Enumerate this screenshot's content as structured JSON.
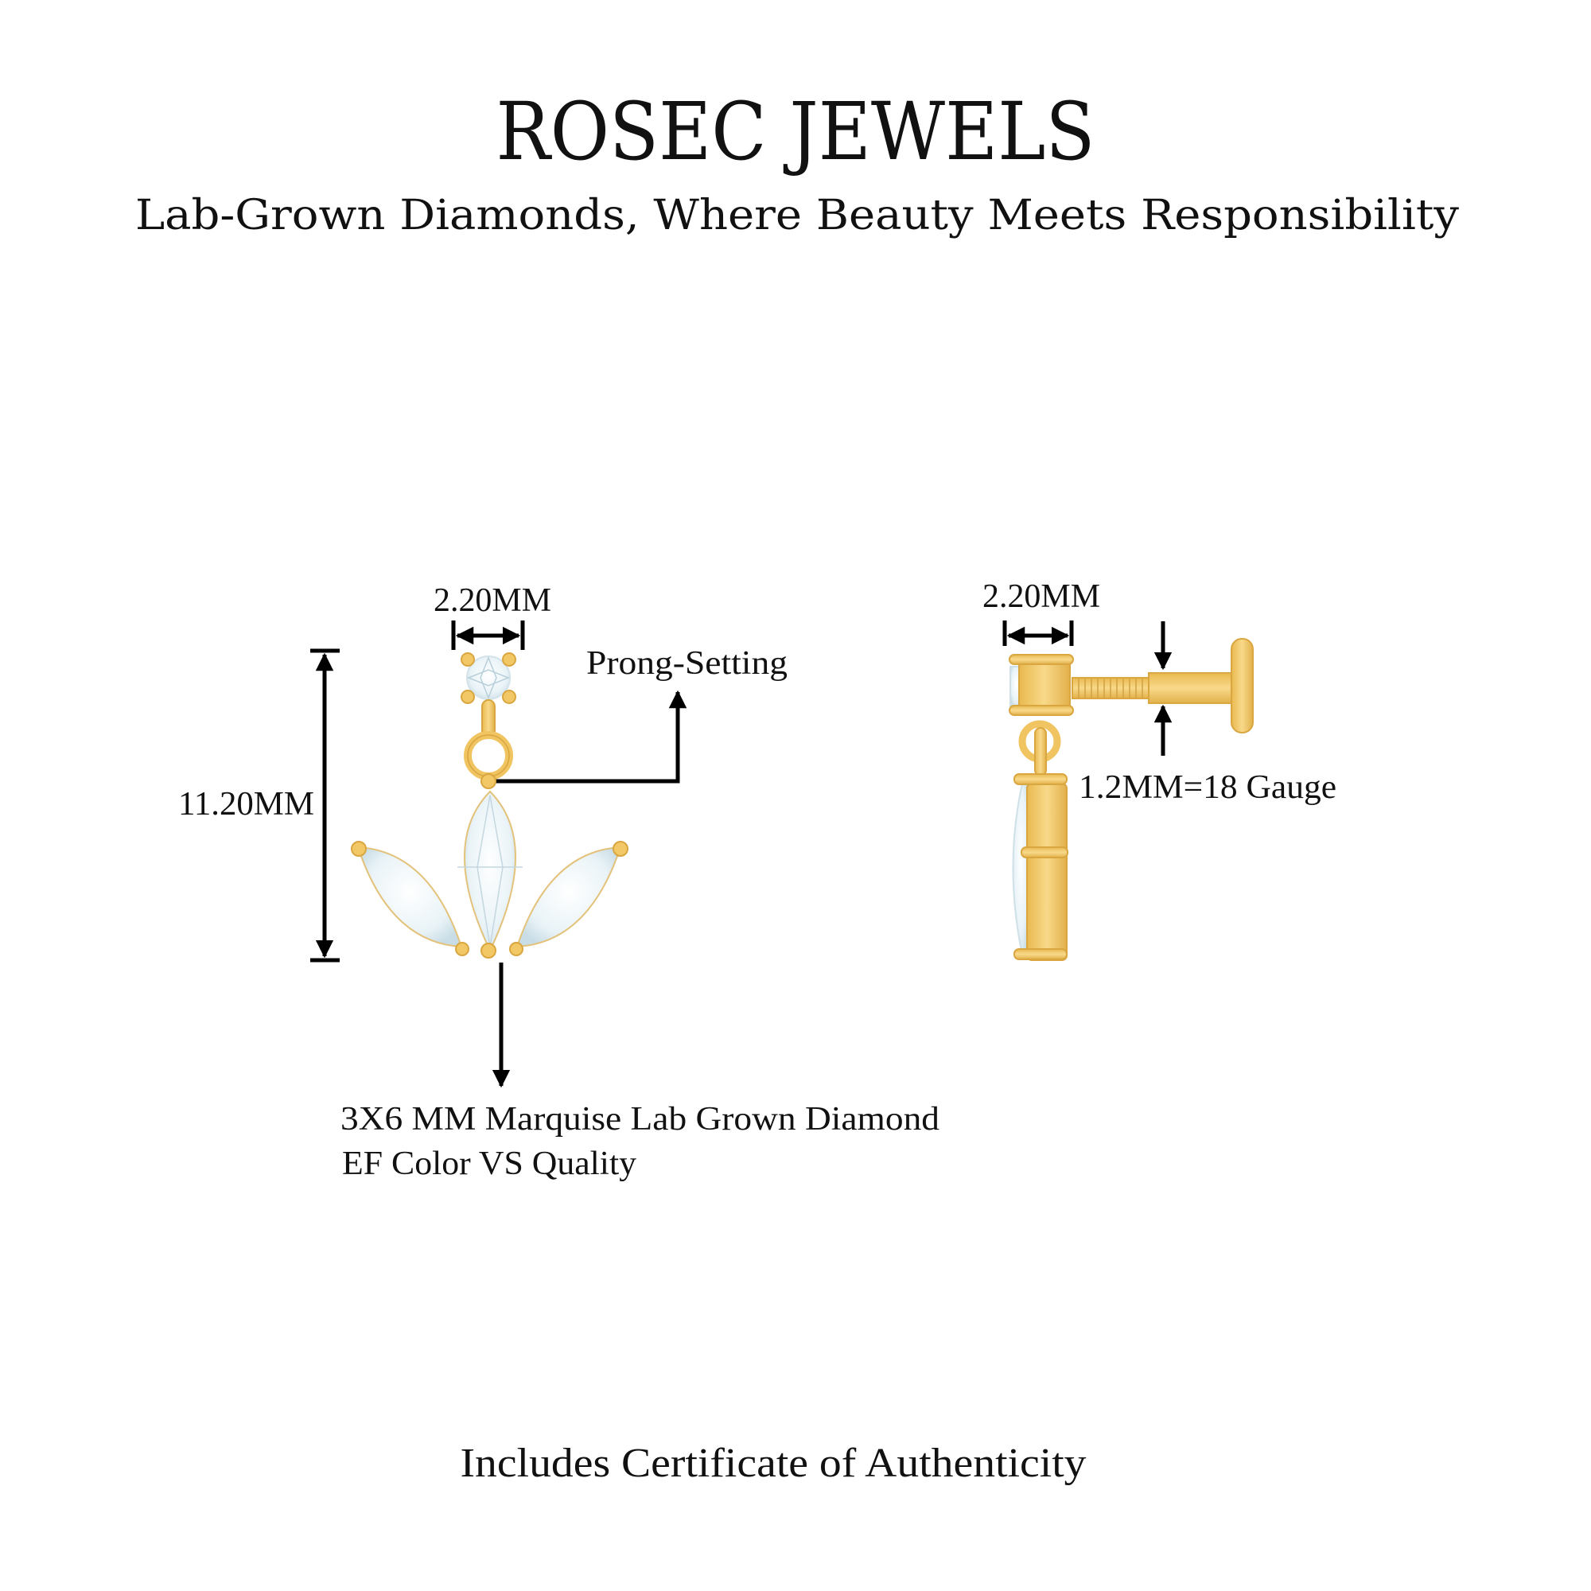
{
  "header": {
    "brand": "ROSEC JEWELS",
    "tagline": "Lab-Grown Diamonds, Where Beauty Meets Responsibility"
  },
  "front_view": {
    "width_label": "2.20MM",
    "height_label": "11.20MM",
    "setting_label": "Prong-Setting",
    "stone_line1": "3X6 MM Marquise Lab Grown Diamond",
    "stone_line2": "EF Color VS Quality"
  },
  "side_view": {
    "width_label": "2.20MM",
    "gauge_label": "1.2MM=18 Gauge"
  },
  "footer": {
    "certificate": "Includes Certificate of Authenticity"
  },
  "colors": {
    "gold": "#f3cb6a",
    "gold_shade": "#dba845",
    "diamond": "#e9f3f7",
    "text": "#111111"
  }
}
